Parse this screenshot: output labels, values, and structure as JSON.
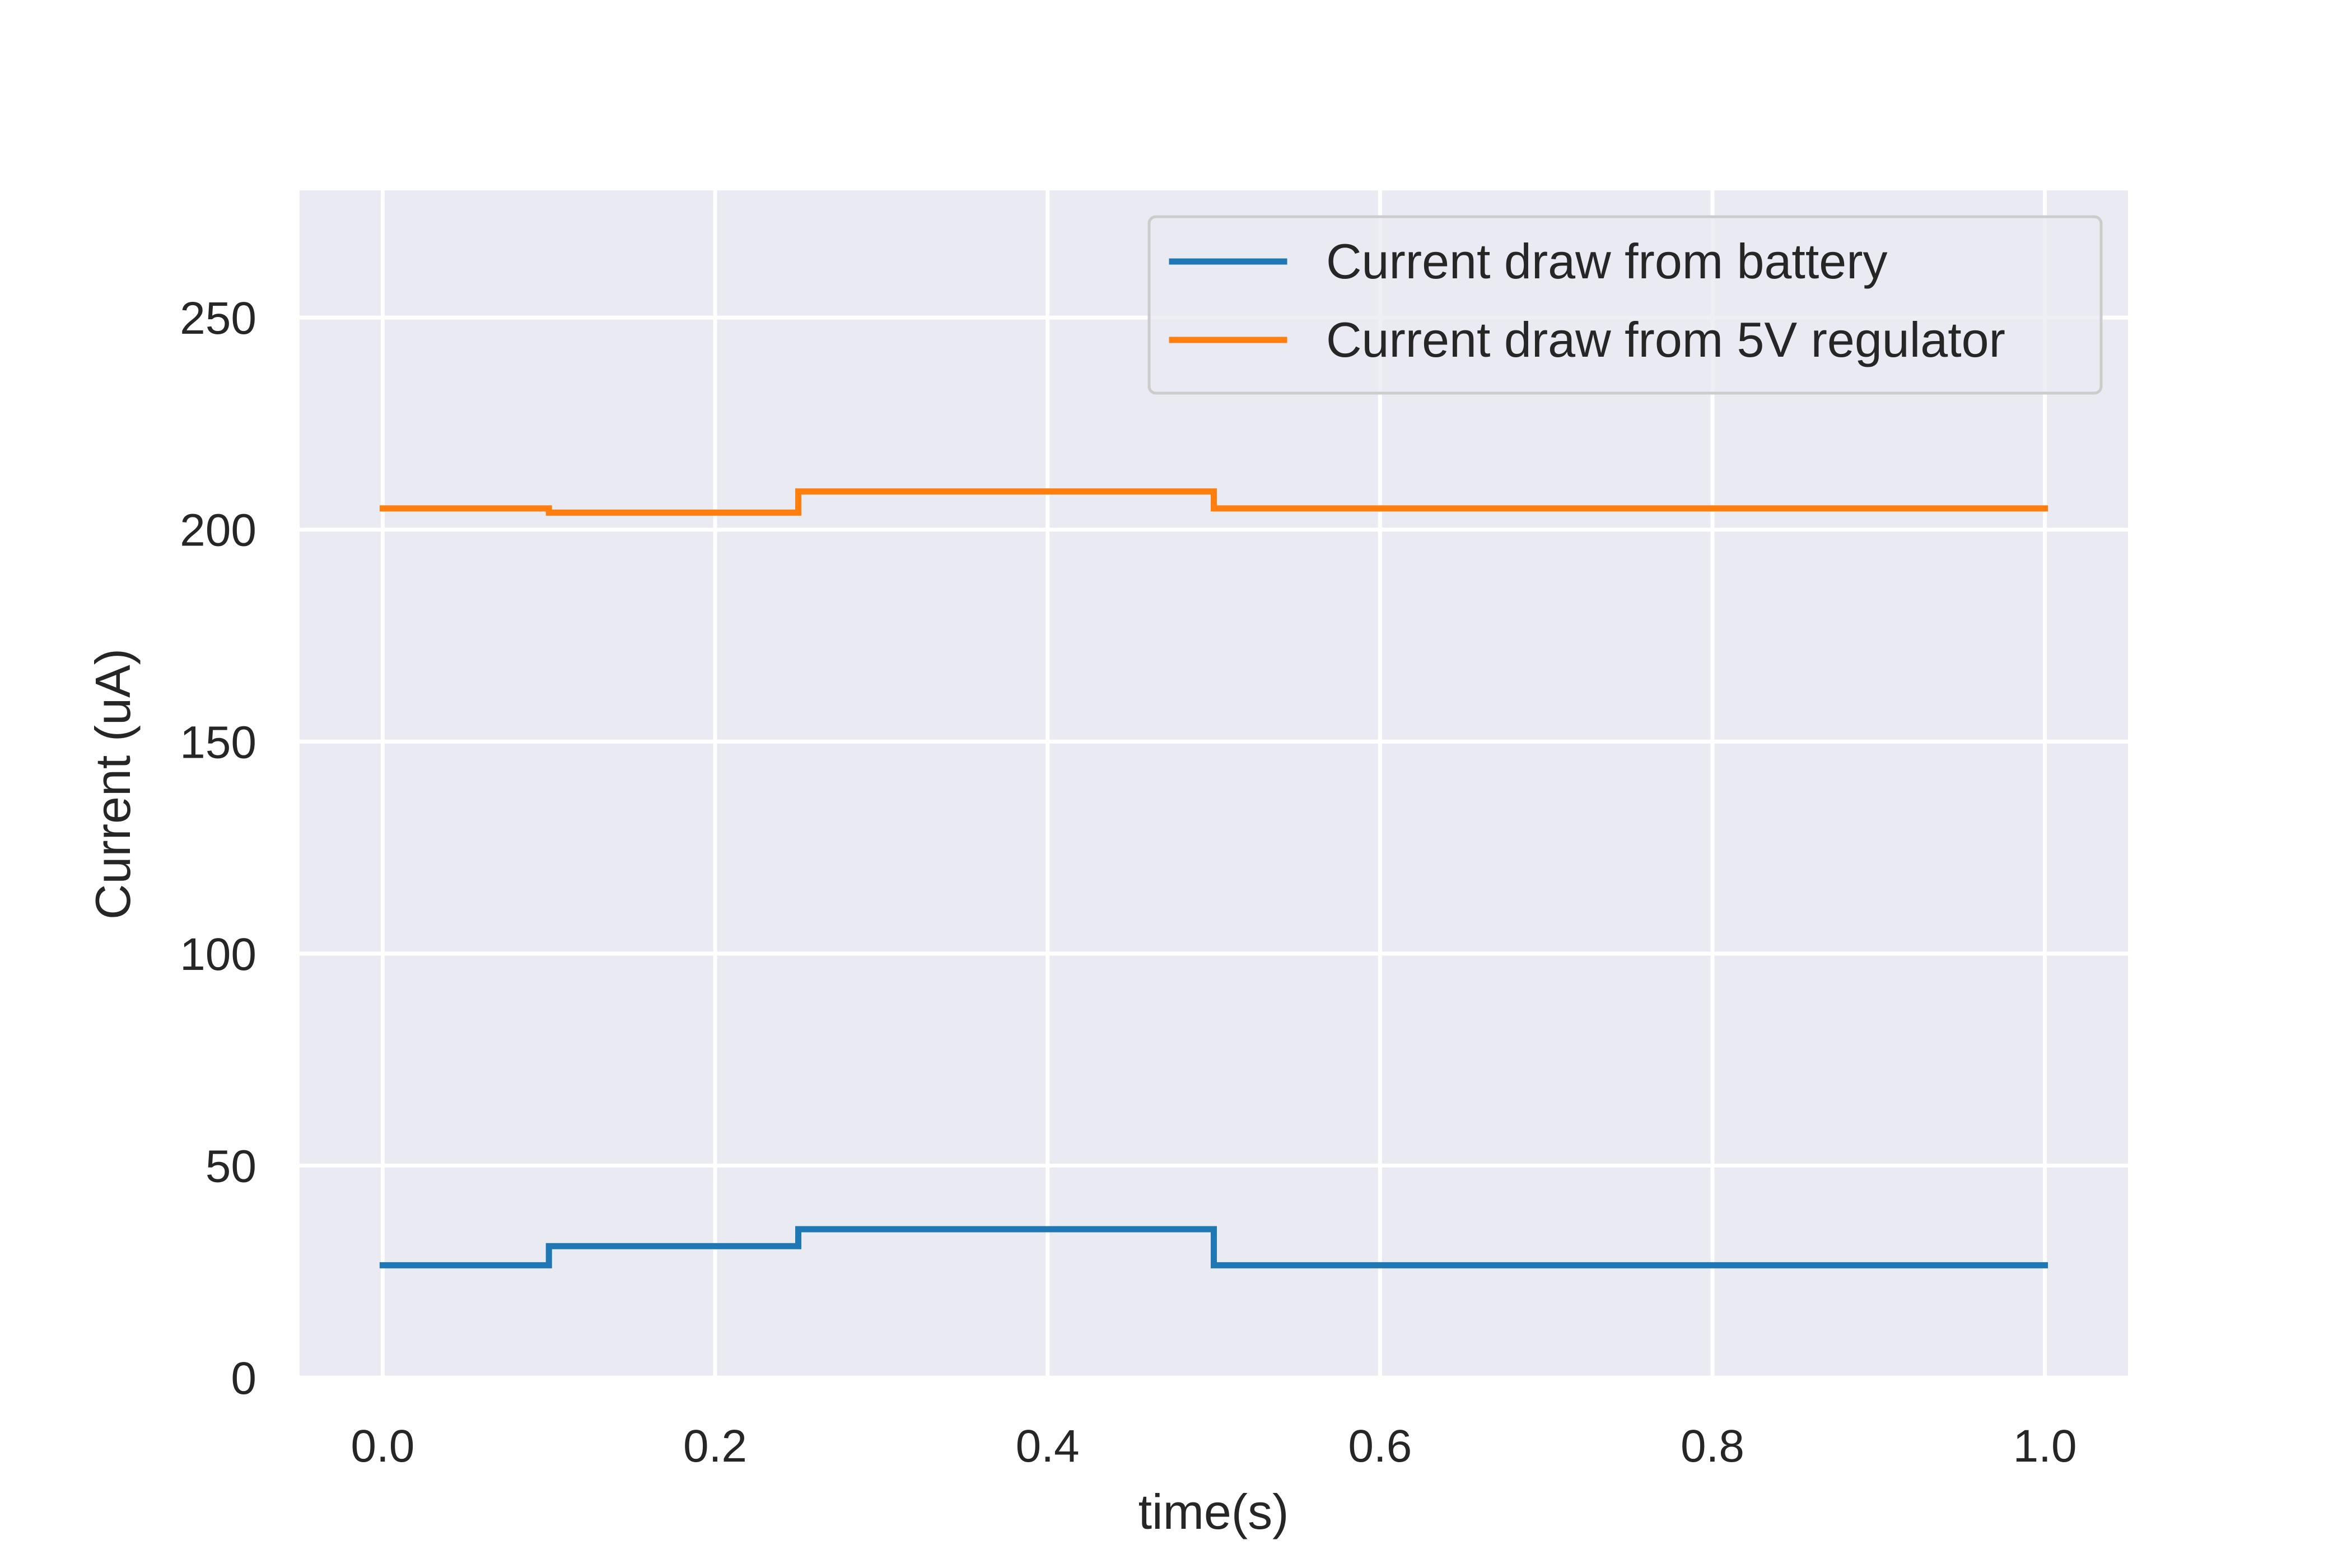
{
  "chart_data": {
    "type": "line",
    "xlabel": "time(s)",
    "ylabel": "Current (uA)",
    "xlim": [
      -0.05,
      1.05
    ],
    "ylim": [
      0,
      280
    ],
    "x_ticks": [
      0.0,
      0.2,
      0.4,
      0.6,
      0.8,
      1.0
    ],
    "x_tick_labels": [
      "0.0",
      "0.2",
      "0.4",
      "0.6",
      "0.8",
      "1.0"
    ],
    "y_ticks": [
      0,
      50,
      100,
      150,
      200,
      250
    ],
    "y_tick_labels": [
      "0",
      "50",
      "100",
      "150",
      "200",
      "250"
    ],
    "grid": true,
    "background_color": "#eaeaf2",
    "grid_color": "#ffffff",
    "legend_placement": "top-right",
    "series": [
      {
        "name": "Current draw from battery",
        "color": "#1f77b4",
        "x": [
          0.0,
          0.1,
          0.1,
          0.25,
          0.25,
          0.5,
          0.5,
          1.0
        ],
        "y": [
          26.5,
          26.5,
          31,
          31,
          35,
          35,
          26.5,
          26.5
        ]
      },
      {
        "name": "Current draw from 5V regulator",
        "color": "#ff7f0e",
        "x": [
          0.0,
          0.1,
          0.1,
          0.25,
          0.25,
          0.5,
          0.5,
          1.0
        ],
        "y": [
          205,
          205,
          204,
          204,
          209,
          209,
          205,
          205
        ]
      }
    ]
  }
}
